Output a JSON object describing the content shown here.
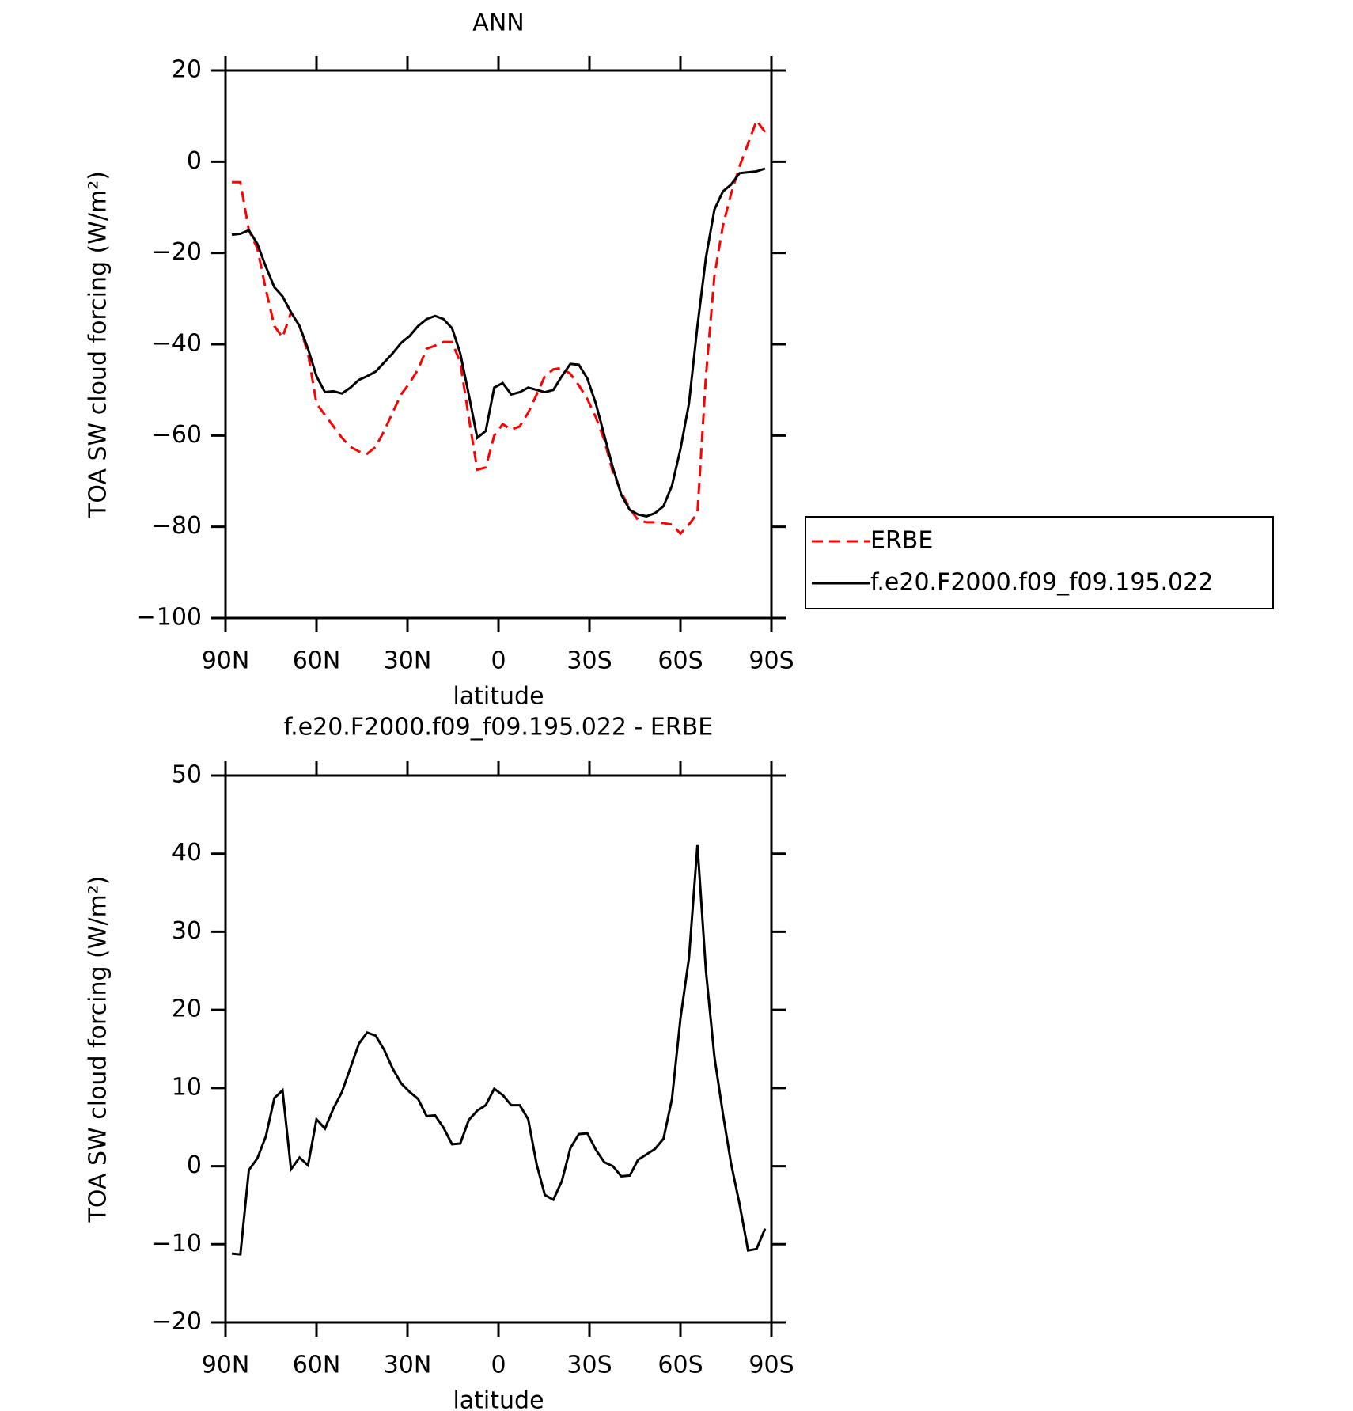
{
  "chart_data": [
    {
      "type": "line",
      "title": "ANN",
      "xlabel": "latitude",
      "ylabel": "TOA SW cloud forcing (W/m²)",
      "x": [
        87.9,
        85.1,
        82.3,
        79.5,
        76.7,
        73.9,
        71.2,
        68.4,
        65.6,
        62.8,
        60.0,
        57.2,
        54.4,
        51.6,
        48.8,
        46.0,
        43.3,
        40.5,
        37.7,
        34.9,
        32.1,
        29.3,
        26.5,
        23.7,
        20.9,
        18.1,
        15.3,
        12.6,
        9.8,
        7.0,
        4.2,
        1.4,
        -1.4,
        -4.2,
        -7.0,
        -9.8,
        -12.6,
        -15.3,
        -18.1,
        -20.9,
        -23.7,
        -26.5,
        -29.3,
        -32.1,
        -34.9,
        -37.7,
        -40.5,
        -43.3,
        -46.0,
        -48.8,
        -51.6,
        -54.4,
        -57.2,
        -60.0,
        -62.8,
        -65.6,
        -68.4,
        -71.2,
        -74.0,
        -76.7,
        -79.5,
        -82.3,
        -85.1,
        -87.9
      ],
      "xlim": [
        90,
        -90
      ],
      "xticks": [
        {
          "value": 90,
          "label": "90N"
        },
        {
          "value": 60,
          "label": "60N"
        },
        {
          "value": 30,
          "label": "30N"
        },
        0,
        {
          "value": -30,
          "label": "30S"
        },
        {
          "value": -60,
          "label": "60S"
        },
        {
          "value": -90,
          "label": "90S"
        }
      ],
      "ylim": [
        -100,
        20
      ],
      "yticks": [
        -100,
        -80,
        -60,
        -40,
        -20,
        0,
        20
      ],
      "legend": "outside-right",
      "series": [
        {
          "name": "ERBE",
          "color": "#ff0000",
          "dash": "dashed",
          "values": [
            -4.5,
            -4.5,
            -15,
            -19,
            -28,
            -36,
            -38.5,
            -33,
            -36,
            -42,
            -53,
            -55.5,
            -58,
            -60.5,
            -62.5,
            -63.5,
            -64,
            -62.5,
            -59,
            -55,
            -51,
            -48.5,
            -45.5,
            -41,
            -40.3,
            -39.5,
            -39.5,
            -44,
            -56,
            -67.5,
            -67,
            -60,
            -57.5,
            -58.7,
            -58,
            -55,
            -51,
            -47,
            -45.5,
            -45.2,
            -46.5,
            -49,
            -52,
            -56,
            -61,
            -68,
            -72.5,
            -76,
            -78.5,
            -79,
            -79,
            -79.2,
            -79.5,
            -81.5,
            -79.5,
            -77,
            -47,
            -25,
            -14,
            -7,
            -1,
            4,
            9,
            6.5
          ]
        },
        {
          "name": "f.e20.F2000.f09_f09.195.022",
          "color": "#000000",
          "dash": "solid",
          "values": [
            -16,
            -15.8,
            -15,
            -18,
            -23,
            -27.5,
            -29.5,
            -33,
            -36,
            -41,
            -47,
            -50.5,
            -50.3,
            -50.8,
            -49.5,
            -47.8,
            -47,
            -46,
            -44,
            -42,
            -39.7,
            -38.2,
            -36,
            -34.5,
            -33.8,
            -34.5,
            -36.5,
            -42,
            -51,
            -60.5,
            -59,
            -49.5,
            -48.5,
            -51,
            -50.5,
            -49.5,
            -50,
            -50.5,
            -50,
            -47,
            -44.3,
            -44.5,
            -47.5,
            -53,
            -60,
            -67,
            -73,
            -76.3,
            -77.3,
            -77.7,
            -77,
            -75.5,
            -71,
            -63,
            -53,
            -36,
            -21,
            -10.5,
            -6.5,
            -5,
            -2.5,
            -2.3,
            -2.1,
            -1.5
          ]
        }
      ]
    },
    {
      "type": "line",
      "title": "f.e20.F2000.f09_f09.195.022 - ERBE",
      "xlabel": "latitude",
      "ylabel": "TOA SW cloud forcing (W/m²)",
      "x": [
        87.9,
        85.1,
        82.3,
        79.5,
        76.7,
        73.9,
        71.2,
        68.4,
        65.6,
        62.8,
        60.0,
        57.2,
        54.4,
        51.6,
        48.8,
        46.0,
        43.3,
        40.5,
        37.7,
        34.9,
        32.1,
        29.3,
        26.5,
        23.7,
        20.9,
        18.1,
        15.3,
        12.6,
        9.8,
        7.0,
        4.2,
        1.4,
        -1.4,
        -4.2,
        -7.0,
        -9.8,
        -12.6,
        -15.3,
        -18.1,
        -20.9,
        -23.7,
        -26.5,
        -29.3,
        -32.1,
        -34.9,
        -37.7,
        -40.5,
        -43.3,
        -46.0,
        -48.8,
        -51.6,
        -54.4,
        -57.2,
        -60.0,
        -62.8,
        -65.6,
        -68.4,
        -71.2,
        -74.0,
        -76.7,
        -79.5,
        -82.3,
        -85.1,
        -87.9
      ],
      "xlim": [
        90,
        -90
      ],
      "xticks": [
        {
          "value": 90,
          "label": "90N"
        },
        {
          "value": 60,
          "label": "60N"
        },
        {
          "value": 30,
          "label": "30N"
        },
        0,
        {
          "value": -30,
          "label": "30S"
        },
        {
          "value": -60,
          "label": "60S"
        },
        {
          "value": -90,
          "label": "90S"
        }
      ],
      "ylim": [
        -20,
        50
      ],
      "yticks": [
        -20,
        -10,
        0,
        10,
        20,
        30,
        40,
        50
      ],
      "series": [
        {
          "color": "#000000",
          "dash": "solid",
          "values": [
            -11.2,
            -11.3,
            -0.5,
            1,
            3.8,
            8.7,
            9.7,
            -0.4,
            1.1,
            0.1,
            6,
            4.8,
            7.4,
            9.5,
            12.6,
            15.7,
            17.1,
            16.7,
            14.9,
            12.5,
            10.6,
            9.5,
            8.6,
            6.4,
            6.5,
            4.9,
            2.8,
            2.9,
            5.9,
            7.1,
            7.8,
            9.9,
            9.1,
            7.8,
            7.8,
            6,
            0.2,
            -3.7,
            -4.3,
            -1.9,
            2.3,
            4.1,
            4.2,
            2.1,
            0.5,
            0,
            -1.3,
            -1.2,
            0.8,
            1.5,
            2.2,
            3.5,
            8.6,
            18.9,
            26.6,
            41.1,
            25,
            14,
            6.7,
            0.3,
            -4.9,
            -10.8,
            -10.6,
            -8
          ]
        }
      ]
    }
  ]
}
